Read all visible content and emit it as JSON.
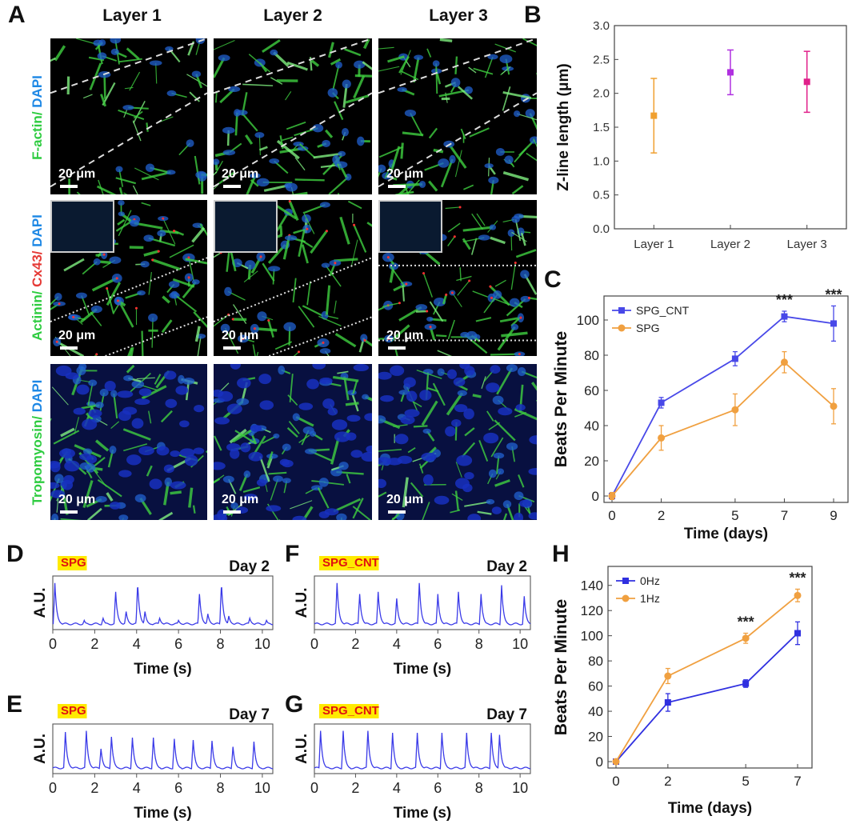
{
  "panels": {
    "a": "A",
    "b": "B",
    "c": "C",
    "d": "D",
    "e": "E",
    "f": "F",
    "g": "G",
    "h": "H"
  },
  "image_grid": {
    "columns": [
      "Layer 1",
      "Layer 2",
      "Layer 3"
    ],
    "rows": [
      {
        "label_parts": [
          {
            "text": "F-actin/ ",
            "color": "#2ecc40"
          },
          {
            "text": "DAPI",
            "color": "#1e88e5"
          }
        ]
      },
      {
        "label_parts": [
          {
            "text": "Actinin/ ",
            "color": "#2ecc40"
          },
          {
            "text": "Cx43/ ",
            "color": "#e53935"
          },
          {
            "text": "DAPI",
            "color": "#1e88e5"
          }
        ]
      },
      {
        "label_parts": [
          {
            "text": "Tropomyosin/ ",
            "color": "#2ecc40"
          },
          {
            "text": "DAPI",
            "color": "#1e88e5"
          }
        ]
      }
    ],
    "scale_label": "20 μm"
  },
  "chart_data": [
    {
      "id": "B",
      "type": "scatter",
      "categories": [
        "Layer 1",
        "Layer 2",
        "Layer 3"
      ],
      "values": [
        1.67,
        2.31,
        2.17
      ],
      "errors": [
        0.55,
        0.33,
        0.45
      ],
      "colors": [
        "#f0a030",
        "#b030e0",
        "#e0208a"
      ],
      "ylabel": "Z-line length (μm)",
      "ylim": [
        0,
        3.0
      ],
      "yticks": [
        "0.0",
        "0.5",
        "1.0",
        "1.5",
        "2.0",
        "2.5",
        "3.0"
      ]
    },
    {
      "id": "C",
      "type": "line",
      "x": [
        0,
        2,
        5,
        7,
        9
      ],
      "xticks": [
        "0",
        "2",
        "5",
        "7",
        "9"
      ],
      "series": [
        {
          "name": "SPG_CNT",
          "color": "#4848e8",
          "values": [
            0,
            53,
            78,
            102,
            98
          ],
          "errors": [
            2,
            3,
            4,
            3,
            10
          ]
        },
        {
          "name": "SPG",
          "color": "#f0a040",
          "values": [
            0,
            33,
            49,
            76,
            51
          ],
          "errors": [
            2,
            7,
            9,
            6,
            10
          ]
        }
      ],
      "annotations": [
        {
          "x": 7,
          "text": "***"
        },
        {
          "x": 9,
          "text": "***"
        }
      ],
      "xlabel": "Time (days)",
      "ylabel": "Beats Per Minute",
      "ylim": [
        0,
        110
      ],
      "yticks": [
        "0",
        "20",
        "40",
        "60",
        "80",
        "100"
      ],
      "legend": "top-left"
    },
    {
      "id": "D",
      "type": "line",
      "tag": "SPG",
      "day": "Day 2",
      "ylabel": "A.U.",
      "xlabel": "Time (s)",
      "xlim": [
        0,
        10.5
      ],
      "xticks": [
        "0",
        "2",
        "4",
        "6",
        "8",
        "10"
      ],
      "peaks": [
        [
          0.1,
          0.95
        ],
        [
          1.5,
          0.1
        ],
        [
          2.4,
          0.15
        ],
        [
          3.0,
          0.75
        ],
        [
          3.5,
          0.3
        ],
        [
          4.05,
          0.95
        ],
        [
          4.4,
          0.3
        ],
        [
          5.1,
          0.15
        ],
        [
          6.0,
          0.1
        ],
        [
          7.0,
          0.7
        ],
        [
          7.4,
          0.25
        ],
        [
          8.05,
          0.95
        ],
        [
          8.4,
          0.2
        ],
        [
          9.4,
          0.15
        ],
        [
          10.2,
          0.1
        ]
      ]
    },
    {
      "id": "E",
      "type": "line",
      "tag": "SPG",
      "day": "Day 7",
      "ylabel": "A.U.",
      "xlabel": "Time (s)",
      "xlim": [
        0,
        10.5
      ],
      "xticks": [
        "0",
        "2",
        "4",
        "6",
        "8",
        "10"
      ],
      "peaks": [
        [
          0.6,
          0.92
        ],
        [
          1.6,
          0.95
        ],
        [
          2.3,
          0.5
        ],
        [
          2.8,
          0.8
        ],
        [
          3.8,
          0.78
        ],
        [
          4.8,
          0.78
        ],
        [
          5.8,
          0.75
        ],
        [
          6.7,
          0.72
        ],
        [
          7.6,
          0.7
        ],
        [
          8.6,
          0.55
        ],
        [
          9.6,
          0.68
        ]
      ]
    },
    {
      "id": "F",
      "type": "line",
      "tag": "SPG_CNT",
      "day": "Day 2",
      "ylabel": "A.U.",
      "xlabel": "Time (s)",
      "xlim": [
        0,
        10.5
      ],
      "xticks": [
        "0",
        "2",
        "4",
        "6",
        "8",
        "10"
      ],
      "peaks": [
        [
          1.1,
          0.95
        ],
        [
          2.2,
          0.7
        ],
        [
          3.1,
          0.75
        ],
        [
          4.0,
          0.6
        ],
        [
          5.1,
          0.95
        ],
        [
          6.0,
          0.7
        ],
        [
          7.0,
          0.75
        ],
        [
          8.1,
          0.7
        ],
        [
          9.1,
          0.9
        ],
        [
          10.2,
          0.65
        ]
      ]
    },
    {
      "id": "G",
      "type": "line",
      "tag": "SPG_CNT",
      "day": "Day 7",
      "ylabel": "A.U.",
      "xlabel": "Time (s)",
      "xlim": [
        0,
        10.5
      ],
      "xticks": [
        "0",
        "2",
        "4",
        "6",
        "8",
        "10"
      ],
      "peaks": [
        [
          0.3,
          0.95
        ],
        [
          1.4,
          0.95
        ],
        [
          2.6,
          0.95
        ],
        [
          3.8,
          0.9
        ],
        [
          5.0,
          0.9
        ],
        [
          6.2,
          0.9
        ],
        [
          7.4,
          0.9
        ],
        [
          8.6,
          0.9
        ],
        [
          9.0,
          0.85
        ]
      ]
    },
    {
      "id": "H",
      "type": "line",
      "x": [
        0,
        2,
        5,
        7
      ],
      "xticks": [
        "0",
        "2",
        "5",
        "7"
      ],
      "series": [
        {
          "name": "0Hz",
          "color": "#3030e0",
          "values": [
            0,
            47,
            62,
            102
          ],
          "errors": [
            2,
            7,
            3,
            9
          ]
        },
        {
          "name": "1Hz",
          "color": "#f0a040",
          "values": [
            0,
            68,
            98,
            132
          ],
          "errors": [
            2,
            6,
            4,
            5
          ]
        }
      ],
      "annotations": [
        {
          "x": 5,
          "text": "***"
        },
        {
          "x": 7,
          "text": "***"
        }
      ],
      "xlabel": "Time (days)",
      "ylabel": "Beats Per Minute",
      "ylim": [
        0,
        150
      ],
      "yticks": [
        "0",
        "20",
        "40",
        "60",
        "80",
        "100",
        "120",
        "140"
      ],
      "legend": "top-left"
    }
  ]
}
